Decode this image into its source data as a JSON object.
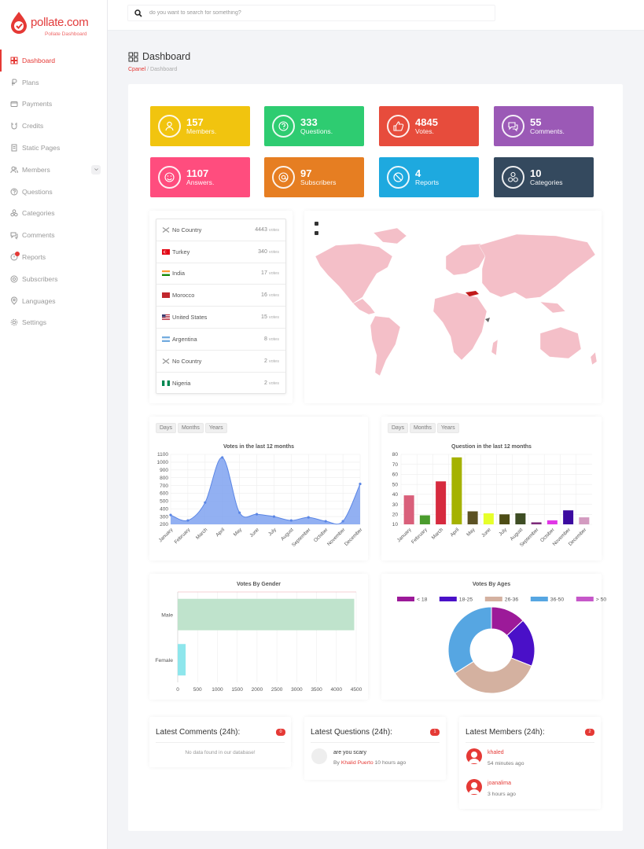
{
  "app": {
    "brand": "pollate.com",
    "tagline": "Pollate Dashboard"
  },
  "sidebar": {
    "items": [
      {
        "label": "Dashboard",
        "icon": "grid-icon"
      },
      {
        "label": "Plans",
        "icon": "currency-icon"
      },
      {
        "label": "Payments",
        "icon": "wallet-icon"
      },
      {
        "label": "Credits",
        "icon": "magnet-icon"
      },
      {
        "label": "Static Pages",
        "icon": "page-icon"
      },
      {
        "label": "Members",
        "icon": "users-icon"
      },
      {
        "label": "Questions",
        "icon": "question-icon"
      },
      {
        "label": "Categories",
        "icon": "categories-icon"
      },
      {
        "label": "Comments",
        "icon": "comments-icon"
      },
      {
        "label": "Reports",
        "icon": "report-icon"
      },
      {
        "label": "Subscribers",
        "icon": "at-icon"
      },
      {
        "label": "Languages",
        "icon": "pin-icon"
      },
      {
        "label": "Settings",
        "icon": "gear-icon"
      }
    ]
  },
  "search": {
    "placeholder": "do you want to search for something?"
  },
  "header": {
    "title": "Dashboard",
    "breadcrumb_link": "Cpanel",
    "breadcrumb_current": " / Dashboard"
  },
  "stats": [
    {
      "value": "157",
      "label": "Members.",
      "color": "#f1c40f",
      "icon": "user-icon"
    },
    {
      "value": "333",
      "label": "Questions.",
      "color": "#2ecc71",
      "icon": "question-icon"
    },
    {
      "value": "4845",
      "label": "Votes.",
      "color": "#e74c3c",
      "icon": "thumbs-up-icon"
    },
    {
      "value": "55",
      "label": "Comments.",
      "color": "#9b59b6",
      "icon": "comments-icon"
    },
    {
      "value": "1107",
      "label": "Answers.",
      "color": "#ff4d7e",
      "icon": "smile-icon"
    },
    {
      "value": "97",
      "label": "Subscribers",
      "color": "#e67e22",
      "icon": "at-icon"
    },
    {
      "value": "4",
      "label": "Reports",
      "color": "#1ea9df",
      "icon": "ban-icon"
    },
    {
      "value": "10",
      "label": "Categories",
      "color": "#34495e",
      "icon": "categories-icon"
    }
  ],
  "countries": [
    {
      "name": "No Country",
      "value": "4443",
      "unit": "votes",
      "flag": "none"
    },
    {
      "name": "Turkey",
      "value": "340",
      "unit": "votes",
      "flag": "tr"
    },
    {
      "name": "India",
      "value": "17",
      "unit": "votes",
      "flag": "in"
    },
    {
      "name": "Morocco",
      "value": "16",
      "unit": "votes",
      "flag": "ma"
    },
    {
      "name": "United States",
      "value": "15",
      "unit": "votes",
      "flag": "us"
    },
    {
      "name": "Argentina",
      "value": "8",
      "unit": "votes",
      "flag": "ar"
    },
    {
      "name": "No Country",
      "value": "2",
      "unit": "votes",
      "flag": "none"
    },
    {
      "name": "Nigeria",
      "value": "2",
      "unit": "votes",
      "flag": "ng"
    }
  ],
  "toggles": {
    "days": "Days",
    "months": "Months",
    "years": "Years"
  },
  "chart_data": [
    {
      "type": "area",
      "title": "Votes in the last 12 months",
      "categories": [
        "January",
        "February",
        "March",
        "April",
        "May",
        "June",
        "July",
        "August",
        "September",
        "October",
        "November",
        "December"
      ],
      "values": [
        320,
        250,
        480,
        1060,
        350,
        330,
        300,
        250,
        290,
        240,
        240,
        720
      ],
      "ylim": [
        200,
        1100
      ],
      "yticks": [
        "1100",
        "1000",
        "900",
        "800",
        "700",
        "600",
        "500",
        "400",
        "300",
        "200"
      ],
      "color": "#7fa2f0"
    },
    {
      "type": "bar",
      "title": "Question in the last 12 months",
      "categories": [
        "January",
        "February",
        "March",
        "April",
        "May",
        "June",
        "July",
        "August",
        "September",
        "October",
        "November",
        "December"
      ],
      "values": [
        39,
        19,
        53,
        77,
        23,
        21,
        20,
        21,
        12,
        14,
        24,
        17
      ],
      "colors": [
        "#d95f7a",
        "#4a9c2d",
        "#d62a3e",
        "#a5b200",
        "#5c5224",
        "#e6ff2a",
        "#4e4d15",
        "#3e4d24",
        "#7d2a7a",
        "#e036e6",
        "#3b0aa0",
        "#d39bc0"
      ],
      "ylim": [
        10,
        80
      ],
      "yticks": [
        "80",
        "70",
        "60",
        "50",
        "40",
        "30",
        "20",
        "10"
      ]
    },
    {
      "type": "bar",
      "orientation": "horizontal",
      "title": "Votes By Gender",
      "categories": [
        "Male",
        "Female"
      ],
      "values": [
        4450,
        200
      ],
      "colors": [
        "#bfe3cc",
        "#8ee6ec"
      ],
      "xlim": [
        0,
        4500
      ],
      "xticks": [
        "0",
        "500",
        "1000",
        "1500",
        "2000",
        "2500",
        "3000",
        "3500",
        "4000",
        "4500"
      ]
    },
    {
      "type": "pie",
      "title": "Votes By Ages",
      "categories": [
        "< 18",
        "18-25",
        "26-36",
        "36-50",
        "> 50"
      ],
      "values": [
        13,
        18,
        35,
        34,
        0
      ],
      "colors": [
        "#9c1a99",
        "#4a10c8",
        "#d4b1a0",
        "#56a6e2",
        "#c657c9"
      ]
    }
  ],
  "feeds": {
    "comments": {
      "title": "Latest Comments (24h):",
      "badge": "0",
      "empty": "No data found in our database!"
    },
    "questions": {
      "title": "Latest Questions (24h):",
      "badge": "1",
      "items": [
        {
          "text": "are you scary",
          "by": "By",
          "author": "Khalid Puerto",
          "time": "10 hours ago"
        }
      ]
    },
    "members": {
      "title": "Latest Members (24h):",
      "badge": "2",
      "items": [
        {
          "name": "khaled",
          "time": "54 minutes ago"
        },
        {
          "name": "joanalima",
          "time": "3 hours ago"
        }
      ]
    }
  }
}
